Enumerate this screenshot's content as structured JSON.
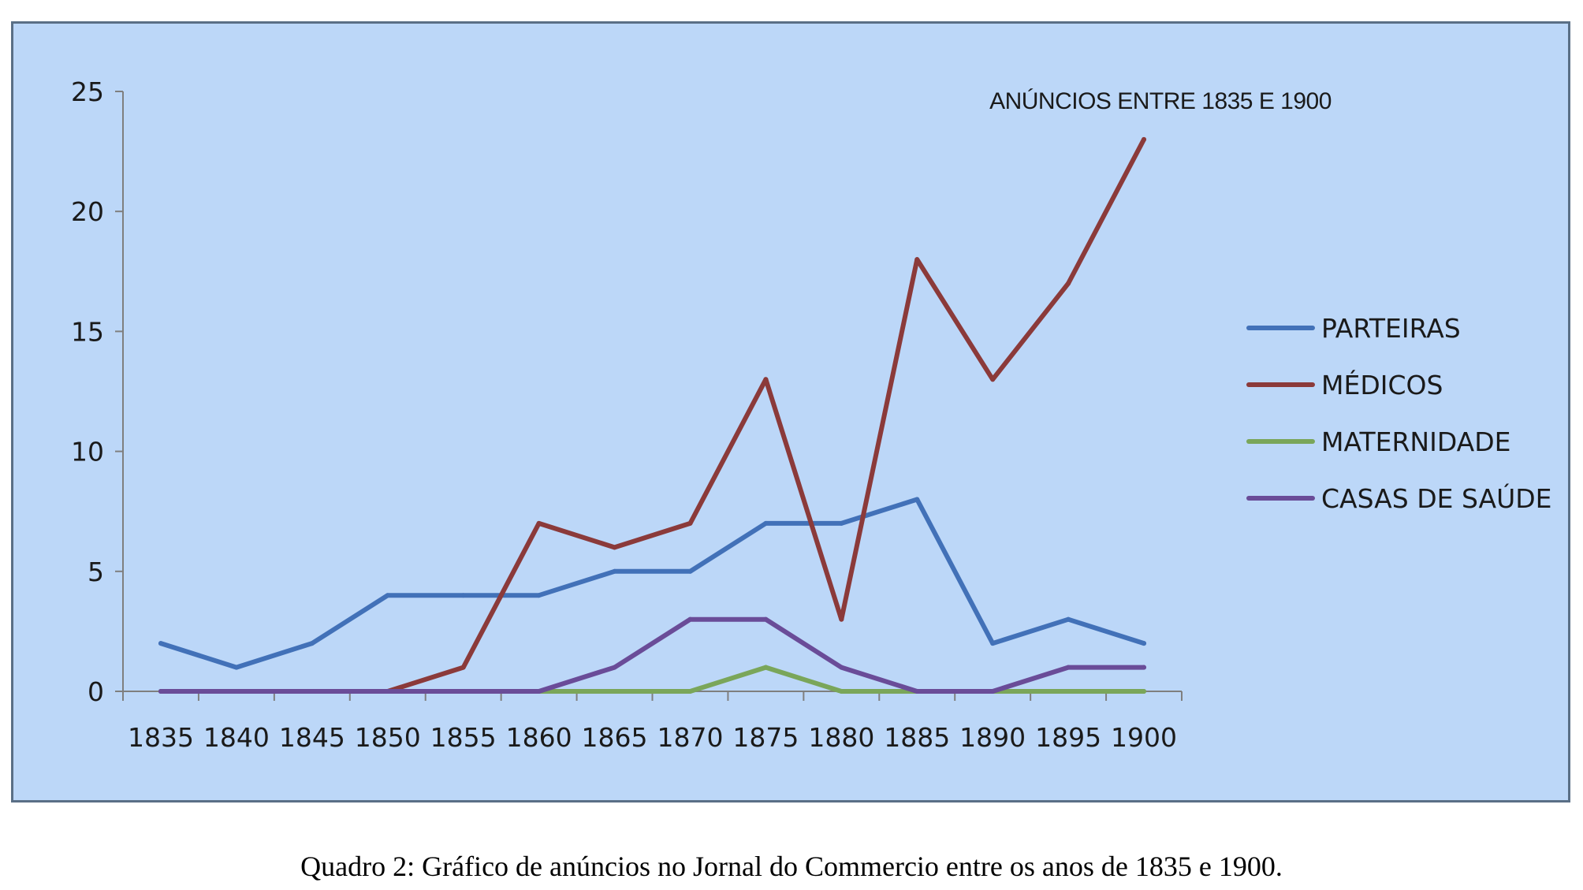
{
  "chart_data": {
    "type": "line",
    "title": "ANÚNCIOS ENTRE 1835 E 1900",
    "xlabel": "",
    "ylabel": "",
    "categories": [
      "1835",
      "1840",
      "1845",
      "1850",
      "1855",
      "1860",
      "1865",
      "1870",
      "1875",
      "1880",
      "1885",
      "1890",
      "1895",
      "1900"
    ],
    "ylim": [
      0,
      25
    ],
    "yticks": [
      0,
      5,
      10,
      15,
      20,
      25
    ],
    "grid": false,
    "legend_position": "right",
    "series": [
      {
        "name": "PARTEIRAS",
        "color": "#4271b8",
        "values": [
          2,
          1,
          2,
          4,
          4,
          4,
          5,
          5,
          7,
          7,
          8,
          2,
          3,
          2
        ]
      },
      {
        "name": "MÉDICOS",
        "color": "#8b3a3a",
        "values": [
          0,
          0,
          0,
          0,
          1,
          7,
          6,
          7,
          13,
          3,
          18,
          13,
          17,
          23
        ]
      },
      {
        "name": "MATERNIDADE",
        "color": "#7aa65a",
        "values": [
          0,
          0,
          0,
          0,
          0,
          0,
          0,
          0,
          1,
          0,
          0,
          0,
          0,
          0
        ]
      },
      {
        "name": "CASAS DE SAÚDE",
        "color": "#6a4c98",
        "values": [
          0,
          0,
          0,
          0,
          0,
          0,
          1,
          3,
          3,
          1,
          0,
          0,
          1,
          1
        ]
      }
    ]
  },
  "caption": "Quadro 2: Gráfico de anúncios no Jornal do Commercio entre os anos de 1835 e 1900."
}
